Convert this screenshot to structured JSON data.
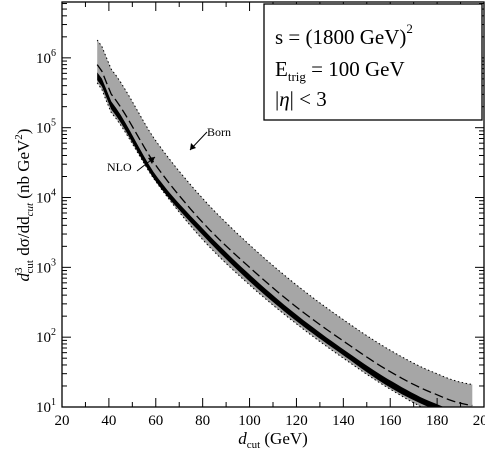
{
  "chart_data": {
    "type": "line",
    "title": "",
    "xlabel": {
      "main": "d",
      "sub": "cut",
      "rest": " (GeV)"
    },
    "ylabel": {
      "d": "d",
      "sup3": "3",
      "sub": "cut",
      "mid": " dσ/dd",
      "sub2": "cut",
      "unit": " (nb GeV",
      "sup2": "2",
      "close": ")"
    },
    "xlim": [
      20,
      200
    ],
    "ylim_log10": [
      1,
      6.8
    ],
    "y_scale": "log",
    "grid": false,
    "x_ticks": [
      20,
      40,
      60,
      80,
      100,
      120,
      140,
      160,
      180,
      200
    ],
    "y_tick_exponents": [
      1,
      2,
      3,
      4,
      5,
      6
    ],
    "x": [
      35,
      40,
      60,
      80,
      100,
      120,
      140,
      160,
      180,
      195
    ],
    "series": [
      {
        "key": "born_band_upper",
        "values": [
          1800000,
          750000,
          65000,
          9700,
          2100,
          560,
          178,
          65,
          30,
          21
        ]
      },
      {
        "key": "born_band_lower",
        "values": [
          440000,
          180000,
          17000,
          2500,
          560,
          155,
          50,
          18,
          8,
          6
        ]
      },
      {
        "name": "Born",
        "key": "born_central",
        "values": [
          800000,
          330000,
          29000,
          4400,
          1000,
          270,
          88,
          32,
          15,
          10.5
        ]
      },
      {
        "key": "nlo_upper",
        "values": [
          620000,
          260000,
          21000,
          3600,
          790,
          210,
          67,
          24,
          11,
          8
        ]
      },
      {
        "key": "nlo_lower",
        "values": [
          480000,
          200000,
          17000,
          2900,
          630,
          170,
          55,
          19,
          9,
          6.3
        ]
      },
      {
        "name": "NLO",
        "key": "nlo_central",
        "values": [
          550000,
          230000,
          19000,
          3250,
          710,
          190,
          61,
          21.5,
          10,
          7
        ]
      }
    ],
    "legend": {
      "line1": {
        "pre": "s = (1800  GeV)",
        "sup": "2"
      },
      "line2": {
        "pre": "E",
        "sub": "trig",
        "post": " = 100  GeV"
      },
      "line3": {
        "pre": "|",
        "italic": "η",
        "post": "| < 3"
      }
    },
    "annotations": {
      "born": "Born",
      "nlo": "NLO"
    },
    "colors": {
      "band": "#a6a6a6",
      "line": "#000000"
    }
  }
}
